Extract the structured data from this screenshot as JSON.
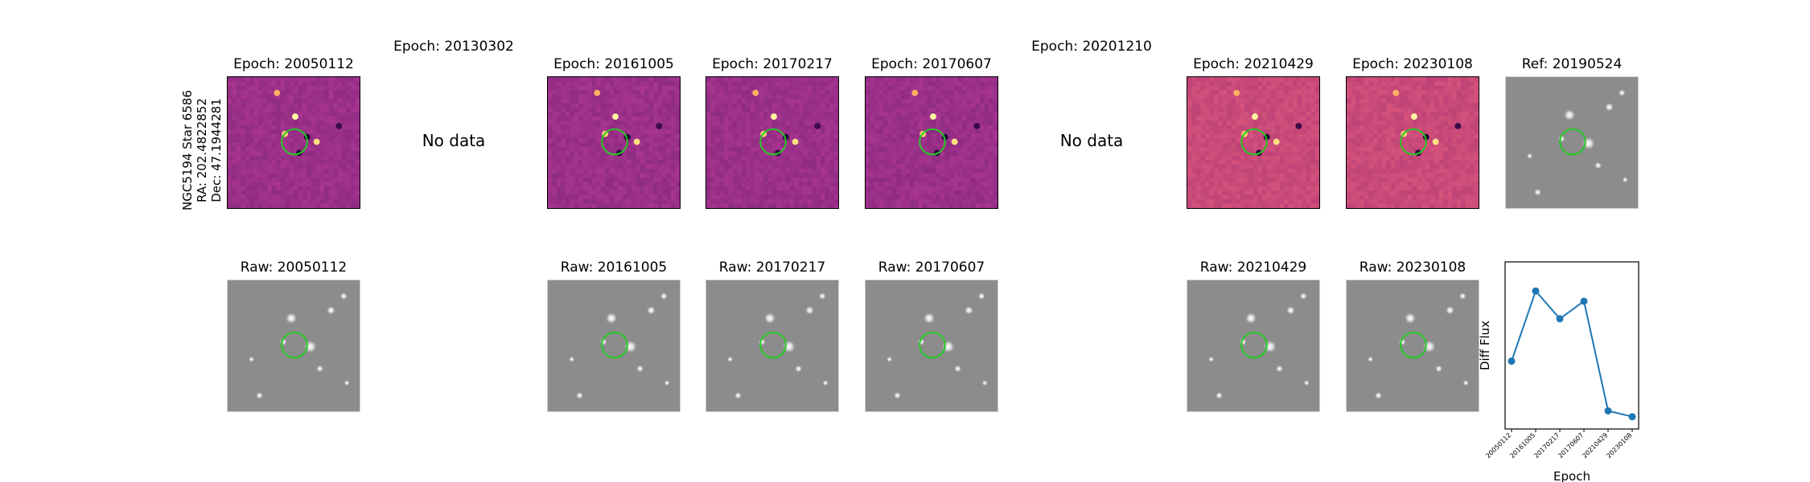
{
  "target": {
    "label_lines": [
      "NGC5194 Star 6586",
      "RA: 202.4822852",
      "Dec: 47.1944281"
    ],
    "aperture_color": "#22cc22"
  },
  "top_row": [
    {
      "title": "Epoch: 20050112",
      "kind": "diff"
    },
    {
      "title": "Epoch: 20130302",
      "kind": "nodata",
      "message": "No data"
    },
    {
      "title": "Epoch: 20161005",
      "kind": "diff"
    },
    {
      "title": "Epoch: 20170217",
      "kind": "diff"
    },
    {
      "title": "Epoch: 20170607",
      "kind": "diff"
    },
    {
      "title": "Epoch: 20201210",
      "kind": "nodata",
      "message": "No data"
    },
    {
      "title": "Epoch: 20210429",
      "kind": "diff"
    },
    {
      "title": "Epoch: 20230108",
      "kind": "diff"
    },
    {
      "title": "Ref: 20190524",
      "kind": "raw"
    }
  ],
  "bottom_row": [
    {
      "title": "Raw: 20050112"
    },
    {
      "title": ""
    },
    {
      "title": "Raw: 20161005"
    },
    {
      "title": "Raw: 20170217"
    },
    {
      "title": "Raw: 20170607"
    },
    {
      "title": ""
    },
    {
      "title": "Raw: 20210429"
    },
    {
      "title": "Raw: 20230108"
    }
  ],
  "chart_data": {
    "type": "line",
    "xlabel": "Epoch",
    "ylabel": "Diff Flux",
    "categories": [
      "20050112",
      "20161005",
      "20170217",
      "20170607",
      "20210429",
      "20230108"
    ],
    "x": [
      0,
      1,
      2,
      3,
      4,
      5
    ],
    "values": [
      0.42,
      0.9,
      0.71,
      0.83,
      0.08,
      0.04
    ],
    "series_color": "#1f77b4",
    "grid": false
  }
}
